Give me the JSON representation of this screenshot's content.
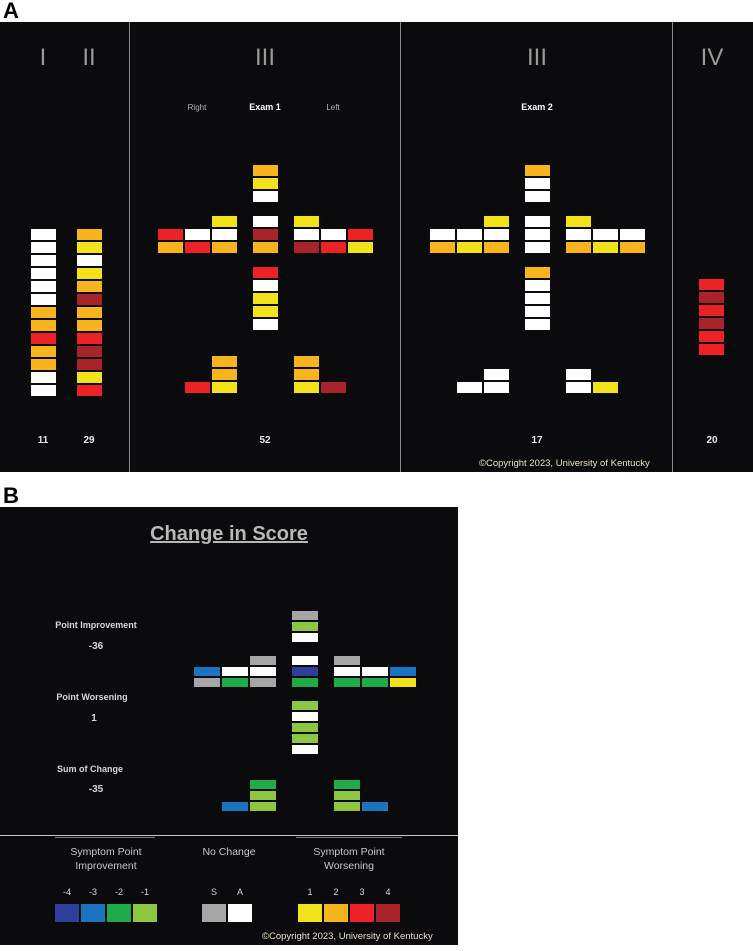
{
  "colors": {
    "white": "#ffffff",
    "yellow": "#f2e21a",
    "orange": "#f7b41c",
    "red": "#ec2227",
    "darkred": "#a8232a",
    "darkblue": "#2e3f9b",
    "blue": "#1a74bf",
    "green": "#20ab4b",
    "lightgreen": "#8dc641",
    "gray": "#a6a6a6",
    "panel": "#0b0b0d"
  },
  "panelA": {
    "letter": "A",
    "sections": [
      {
        "roman": "I"
      },
      {
        "roman": "II"
      },
      {
        "roman": "III"
      },
      {
        "roman": "III"
      },
      {
        "roman": "IV"
      }
    ],
    "exam1": {
      "title": "Exam 1",
      "right": "Right",
      "left": "Left"
    },
    "exam2": {
      "title": "Exam 2"
    },
    "totals": [
      "11",
      "29",
      "52",
      "17",
      "20"
    ],
    "copyright": "©Copyright 2023, University of Kentucky",
    "col_I": [
      "white",
      "white",
      "white",
      "white",
      "white",
      "white",
      "orange",
      "orange",
      "red",
      "orange",
      "orange",
      "white",
      "white"
    ],
    "col_II": [
      "orange",
      "yellow",
      "white",
      "yellow",
      "orange",
      "darkred",
      "orange",
      "orange",
      "red",
      "darkred",
      "darkred",
      "yellow",
      "red"
    ],
    "col_IV": [
      "red",
      "darkred",
      "red",
      "darkred",
      "red",
      "red"
    ],
    "exam1_cells": {
      "head": [
        "orange",
        "yellow",
        "white"
      ],
      "torso": [
        "white",
        "darkred",
        "orange"
      ],
      "lower": [
        "red",
        "white",
        "yellow",
        "yellow",
        "white"
      ],
      "r_arm_top": [
        "yellow"
      ],
      "r_arm_row1": [
        "red",
        "white",
        "white"
      ],
      "r_arm_row2": [
        "orange",
        "red",
        "orange"
      ],
      "l_arm_top": [
        "yellow"
      ],
      "l_arm_row1": [
        "white",
        "white",
        "red"
      ],
      "l_arm_row2": [
        "darkred",
        "red",
        "yellow"
      ],
      "r_leg": [
        "orange",
        "orange",
        "yellow"
      ],
      "r_foot": [
        "red"
      ],
      "l_leg": [
        "orange",
        "orange",
        "yellow"
      ],
      "l_foot": [
        "darkred"
      ]
    },
    "exam2_cells": {
      "head": [
        "orange",
        "white",
        "white"
      ],
      "torso": [
        "white",
        "white",
        "white"
      ],
      "lower": [
        "orange",
        "white",
        "white",
        "white",
        "white"
      ],
      "r_arm_top": [
        "yellow"
      ],
      "r_arm_row1": [
        "white",
        "white",
        "white"
      ],
      "r_arm_row2": [
        "orange",
        "yellow",
        "orange"
      ],
      "l_arm_top": [
        "yellow"
      ],
      "l_arm_row1": [
        "white",
        "white",
        "white"
      ],
      "l_arm_row2": [
        "orange",
        "yellow",
        "orange"
      ],
      "r_leg": [
        "white",
        "white"
      ],
      "r_foot": [
        "white"
      ],
      "l_leg": [
        "white",
        "white"
      ],
      "l_foot": [
        "yellow"
      ]
    }
  },
  "panelB": {
    "letter": "B",
    "title": "Change in Score",
    "point_improvement_label": "Point Improvement",
    "point_improvement_value": "-36",
    "point_worsening_label": "Point Worsening",
    "point_worsening_value": "1",
    "sum_label": "Sum of Change",
    "sum_value": "-35",
    "copyright": "©Copyright 2023, University of Kentucky",
    "change_cells": {
      "head": [
        "gray",
        "lightgreen",
        "white"
      ],
      "torso": [
        "white",
        "darkblue",
        "green"
      ],
      "lower": [
        "lightgreen",
        "white",
        "lightgreen",
        "lightgreen",
        "white"
      ],
      "r_arm_top": [
        "gray"
      ],
      "r_arm_row1": [
        "blue",
        "white",
        "white"
      ],
      "r_arm_row2": [
        "gray",
        "green",
        "gray"
      ],
      "l_arm_top": [
        "gray"
      ],
      "l_arm_row1": [
        "white",
        "white",
        "blue"
      ],
      "l_arm_row2": [
        "green",
        "green",
        "yellow"
      ],
      "r_leg": [
        "green",
        "lightgreen",
        "lightgreen"
      ],
      "r_foot": [
        "blue"
      ],
      "l_leg": [
        "green",
        "lightgreen",
        "lightgreen"
      ],
      "l_foot": [
        "blue"
      ]
    },
    "legend": {
      "improvement_title_1": "Symptom Point",
      "improvement_title_2": "Improvement",
      "nochange_title": "No Change",
      "worsening_title_1": "Symptom Point",
      "worsening_title_2": "Worsening",
      "improvement_ticks": [
        "-4",
        "-3",
        "-2",
        "-1"
      ],
      "improvement_colors": [
        "darkblue",
        "blue",
        "green",
        "lightgreen"
      ],
      "nochange_ticks": [
        "S",
        "A"
      ],
      "nochange_colors": [
        "gray",
        "white"
      ],
      "worsening_ticks": [
        "1",
        "2",
        "3",
        "4"
      ],
      "worsening_colors": [
        "yellow",
        "orange",
        "red",
        "darkred"
      ]
    }
  }
}
